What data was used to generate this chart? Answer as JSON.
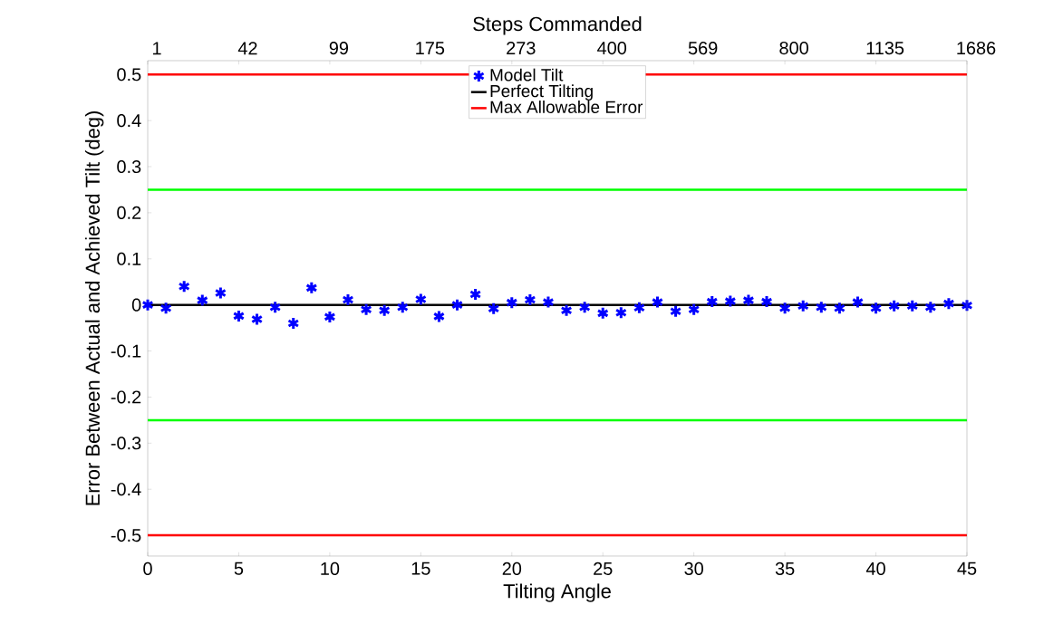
{
  "chart_data": {
    "type": "scatter",
    "xlabel": "Tilting Angle",
    "ylabel": "Error Between Actual and Achieved Tilt (deg)",
    "x2label": "Steps Commanded",
    "xlim": [
      0,
      45
    ],
    "xticks": [
      0,
      5,
      10,
      15,
      20,
      25,
      30,
      35,
      40,
      45
    ],
    "ylim": [
      -0.545,
      0.53
    ],
    "yticks": [
      -0.5,
      -0.4,
      -0.3,
      -0.2,
      -0.1,
      0,
      0.1,
      0.2,
      0.3,
      0.4,
      0.5
    ],
    "annotations": [
      "1",
      "42",
      "99",
      "175",
      "273",
      "400",
      "569",
      "800",
      "1135",
      "1686"
    ],
    "grid": false,
    "legend": "top",
    "series": [
      {
        "name": "Model Tilt",
        "marker": "cross",
        "color": "#0000ff",
        "x": [
          0,
          1,
          2,
          3,
          4,
          5,
          6,
          7,
          8,
          9,
          10,
          11,
          12,
          13,
          14,
          15,
          16,
          17,
          18,
          19,
          20,
          21,
          22,
          23,
          24,
          25,
          26,
          27,
          28,
          29,
          30,
          31,
          32,
          33,
          34,
          35,
          36,
          37,
          38,
          39,
          40,
          41,
          42,
          43,
          44,
          45
        ],
        "values": [
          0,
          -0.007,
          0.04,
          0.01,
          0.026,
          -0.024,
          -0.031,
          -0.005,
          -0.04,
          0.037,
          -0.026,
          0.011,
          -0.01,
          -0.012,
          -0.005,
          0.012,
          -0.025,
          0,
          0.023,
          -0.008,
          0.005,
          0.011,
          0.006,
          -0.012,
          -0.005,
          -0.018,
          -0.017,
          -0.006,
          0.006,
          -0.014,
          -0.01,
          0.007,
          0.008,
          0.01,
          0.007,
          -0.007,
          -0.002,
          -0.005,
          -0.007,
          0.006,
          -0.007,
          -0.002,
          -0.002,
          -0.005,
          0.003,
          -0.001
        ]
      },
      {
        "name": "Perfect Tilting",
        "type": "line",
        "color": "#000000",
        "x": [
          0,
          45
        ],
        "values": [
          0,
          0
        ]
      },
      {
        "name": "Max Allowable Error",
        "type": "line",
        "color": "#ff0000",
        "x": [
          0,
          45
        ],
        "values": [
          0.5,
          0.5
        ]
      },
      {
        "type": "line",
        "color": "#ff0000",
        "x": [
          0,
          45
        ],
        "values": [
          -0.5,
          -0.5
        ]
      }
    ],
    "ref_lines": [
      {
        "axis": "y",
        "value": 0.25,
        "color": "#00ff00"
      },
      {
        "axis": "y",
        "value": -0.25,
        "color": "#00ff00"
      }
    ]
  }
}
